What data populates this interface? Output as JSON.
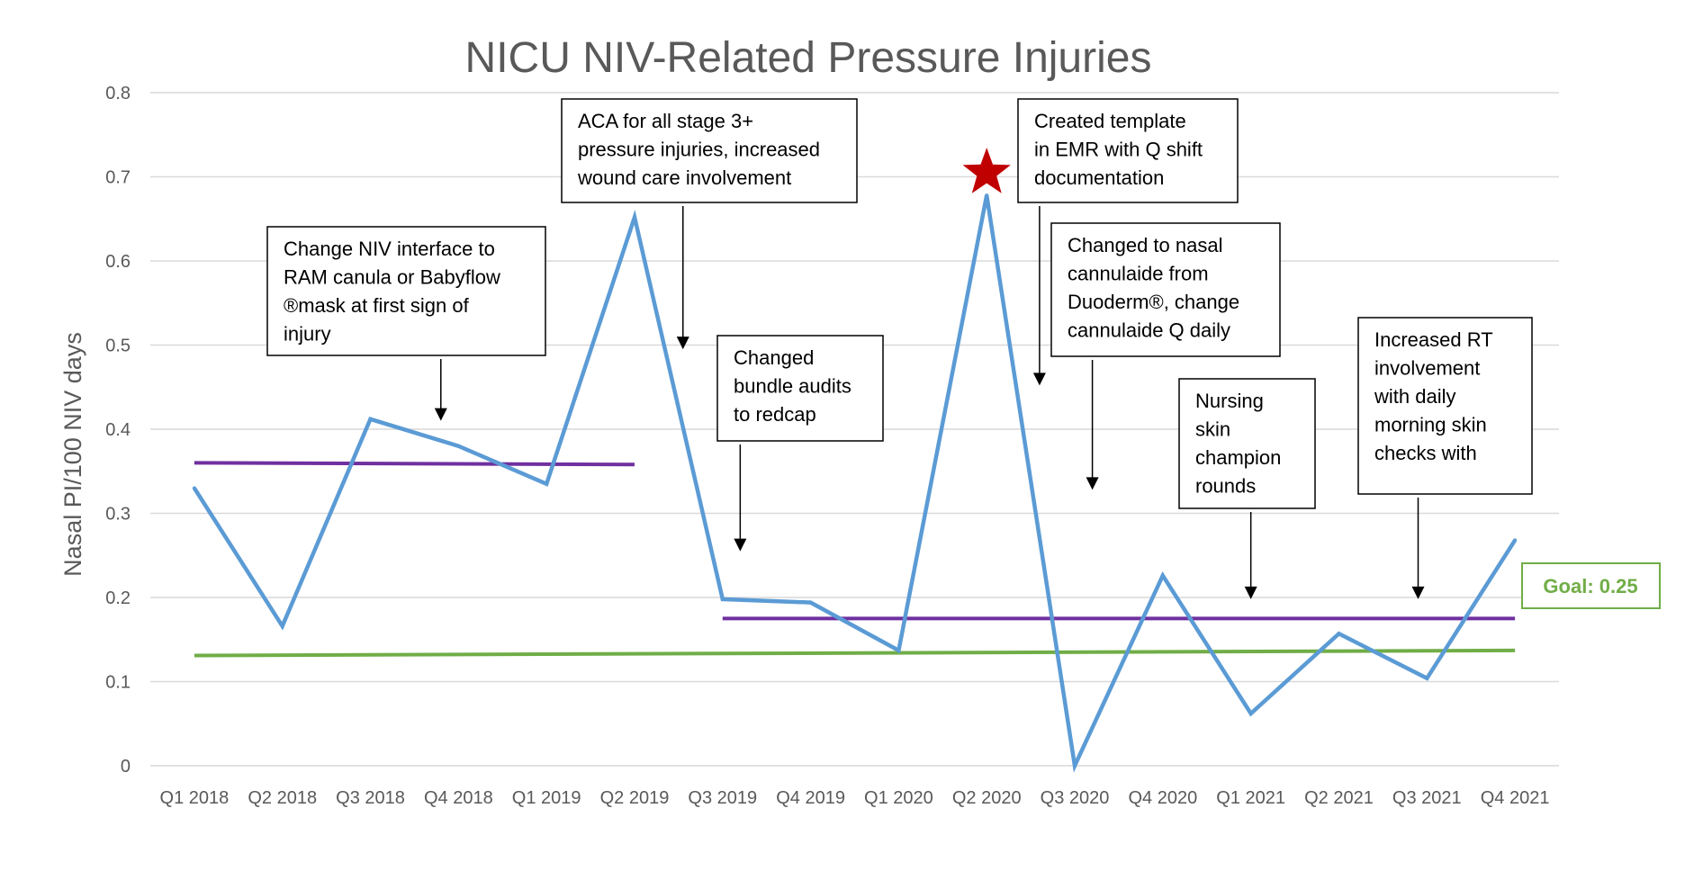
{
  "chart_data": {
    "type": "line",
    "title": "NICU NIV-Related Pressure Injuries",
    "xlabel": "",
    "ylabel": "Nasal PI/100 NIV days",
    "ylim": [
      0,
      0.8
    ],
    "yticks": [
      "0",
      "0.1",
      "0.2",
      "0.3",
      "0.4",
      "0.5",
      "0.6",
      "0.7",
      "0.8"
    ],
    "grid": true,
    "categories": [
      "Q1 2018",
      "Q2 2018",
      "Q3 2018",
      "Q4 2018",
      "Q1 2019",
      "Q2 2019",
      "Q3 2019",
      "Q4 2019",
      "Q1 2020",
      "Q2 2020",
      "Q3 2020",
      "Q4 2020",
      "Q1 2021",
      "Q2 2021",
      "Q3 2021",
      "Q4 2021"
    ],
    "series": [
      {
        "color": "#5b9bd5",
        "values": [
          0.33,
          0.166,
          0.412,
          0.38,
          0.335,
          0.652,
          0.198,
          0.194,
          0.137,
          0.678,
          0.0,
          0.226,
          0.062,
          0.157,
          0.104,
          0.268
        ]
      }
    ],
    "reference_lines": [
      {
        "color": "#7030a0",
        "from_index": 0,
        "to_index": 5,
        "y_start": 0.36,
        "y_end": 0.358
      },
      {
        "color": "#7030a0",
        "from_index": 6,
        "to_index": 15,
        "y_start": 0.175,
        "y_end": 0.175
      },
      {
        "color": "#70ad47",
        "from_index": 0,
        "to_index": 15,
        "y_start": 0.131,
        "y_end": 0.137
      }
    ],
    "star_marker": {
      "index": 9,
      "color": "#c00000"
    },
    "goal_label": {
      "text": "Goal: 0.25",
      "color": "#70ad47"
    },
    "annotations": [
      {
        "lines": [
          "Change NIV interface to",
          "RAM canula or Babyflow",
          "®mask at first sign of",
          "injury"
        ],
        "arrow_index": 2.8,
        "arrow_to_y": 0.41
      },
      {
        "lines": [
          "ACA for all stage 3+",
          "pressure injuries, increased",
          "wound care involvement"
        ],
        "arrow_index": 5.55,
        "arrow_to_y": 0.495
      },
      {
        "lines": [
          "Changed",
          "bundle audits",
          "to redcap"
        ],
        "arrow_index": 6.2,
        "arrow_to_y": 0.255
      },
      {
        "lines": [
          "Created template",
          "in EMR with Q shift",
          "documentation"
        ],
        "arrow_index": 9.6,
        "arrow_to_y": 0.452
      },
      {
        "lines": [
          "Changed to nasal",
          "cannulaide from",
          "Duoderm®, change",
          "cannulaide Q daily"
        ],
        "arrow_index": 10.2,
        "arrow_to_y": 0.328
      },
      {
        "lines": [
          "Nursing",
          "skin",
          "champion",
          "rounds"
        ],
        "arrow_index": 12.0,
        "arrow_to_y": 0.198
      },
      {
        "lines": [
          "Increased RT",
          "involvement",
          "with daily",
          "morning skin",
          "checks with"
        ],
        "arrow_index": 13.9,
        "arrow_to_y": 0.198
      }
    ]
  }
}
